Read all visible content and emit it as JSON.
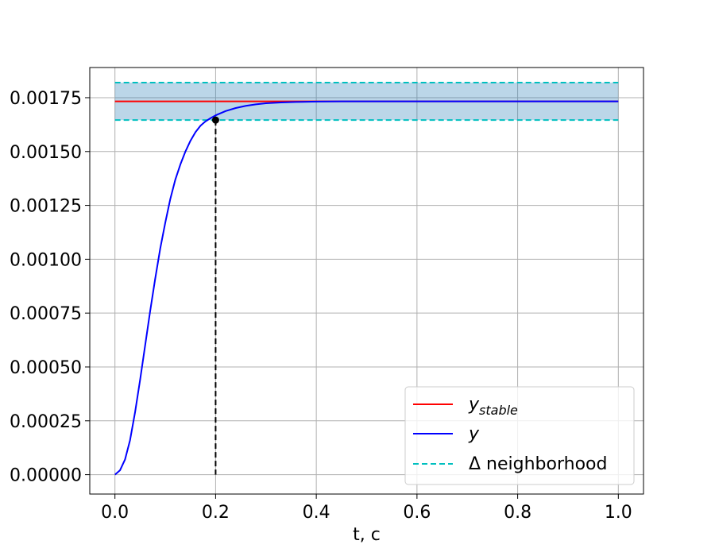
{
  "chart_data": {
    "type": "line",
    "title": "",
    "xlabel": "t, c",
    "ylabel": "",
    "xlim": [
      -0.05,
      1.05
    ],
    "ylim": [
      -9e-05,
      0.00189
    ],
    "x_ticks": [
      0.0,
      0.2,
      0.4,
      0.6,
      0.8,
      1.0
    ],
    "x_tick_labels": [
      "0.0",
      "0.2",
      "0.4",
      "0.6",
      "0.8",
      "1.0"
    ],
    "y_ticks": [
      0.0,
      0.00025,
      0.0005,
      0.00075,
      0.001,
      0.00125,
      0.0015,
      0.00175
    ],
    "y_tick_labels": [
      "0.00000",
      "0.00025",
      "0.00050",
      "0.00075",
      "0.00100",
      "0.00125",
      "0.00150",
      "0.00175"
    ],
    "grid": true,
    "series": [
      {
        "name": "y_stable",
        "color": "#ff0000",
        "x": [
          0.0,
          1.0
        ],
        "y": [
          0.001733,
          0.001733
        ]
      },
      {
        "name": "y",
        "color": "#0000ff",
        "x": [
          0.0,
          0.01,
          0.02,
          0.03,
          0.04,
          0.05,
          0.06,
          0.07,
          0.08,
          0.09,
          0.1,
          0.11,
          0.12,
          0.13,
          0.14,
          0.15,
          0.16,
          0.17,
          0.18,
          0.19,
          0.2,
          0.22,
          0.24,
          0.26,
          0.28,
          0.3,
          0.33,
          0.36,
          0.4,
          0.45,
          0.5,
          0.6,
          0.7,
          0.8,
          0.9,
          1.0
        ],
        "y": [
          0.0,
          2e-05,
          7e-05,
          0.00016,
          0.00029,
          0.00044,
          0.0006,
          0.00076,
          0.00091,
          0.00105,
          0.00117,
          0.00128,
          0.00137,
          0.00144,
          0.0015,
          0.00155,
          0.00159,
          0.00162,
          0.00164,
          0.001655,
          0.001668,
          0.001688,
          0.001702,
          0.001712,
          0.001719,
          0.001724,
          0.001728,
          0.00173,
          0.001732,
          0.001733,
          0.001733,
          0.001733,
          0.001733,
          0.001733,
          0.001733,
          0.001733
        ]
      },
      {
        "name": "Δ neighborhood",
        "color": "#00bfbf",
        "dashed": true,
        "upper": 0.00182,
        "lower": 0.001646,
        "x": [
          0.0,
          1.0
        ]
      }
    ],
    "band": {
      "x": [
        0.0,
        1.0
      ],
      "lower": 0.001646,
      "upper": 0.00182,
      "color": "#1f77b4",
      "alpha": 0.3
    },
    "settling_point": {
      "x": 0.2,
      "y": 0.001646,
      "color": "#000000"
    },
    "legend": {
      "position": "lower-right",
      "entries": [
        {
          "text_main": "y",
          "text_sub": "stable",
          "color": "#ff0000",
          "dashed": false
        },
        {
          "text_main": "y",
          "text_sub": "",
          "color": "#0000ff",
          "dashed": false
        },
        {
          "text_main": "Δ neighborhood",
          "text_sub": "",
          "color": "#00bfbf",
          "dashed": true
        }
      ]
    }
  }
}
